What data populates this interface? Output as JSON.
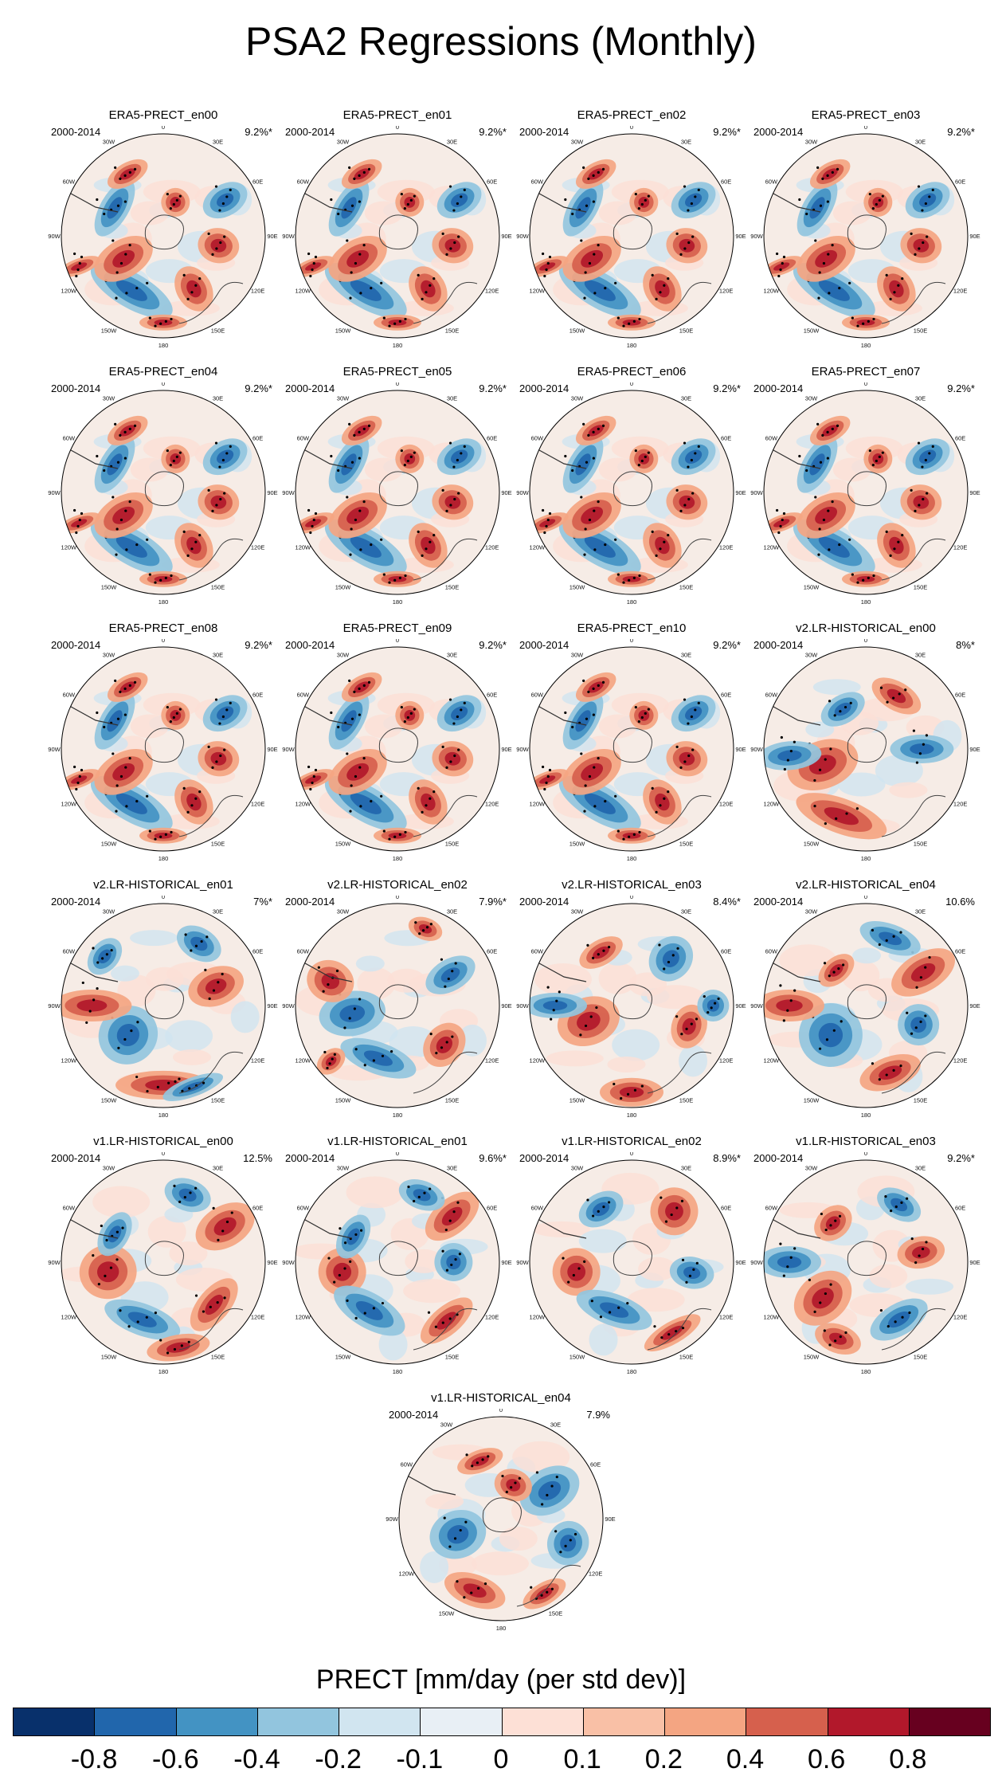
{
  "title": "PSA2 Regressions (Monthly)",
  "panels": [
    {
      "title": "ERA5-PRECT_en00",
      "years": "2000-2014",
      "pct": "9.2%*",
      "variant": 0
    },
    {
      "title": "ERA5-PRECT_en01",
      "years": "2000-2014",
      "pct": "9.2%*",
      "variant": 0
    },
    {
      "title": "ERA5-PRECT_en02",
      "years": "2000-2014",
      "pct": "9.2%*",
      "variant": 0
    },
    {
      "title": "ERA5-PRECT_en03",
      "years": "2000-2014",
      "pct": "9.2%*",
      "variant": 0
    },
    {
      "title": "ERA5-PRECT_en04",
      "years": "2000-2014",
      "pct": "9.2%*",
      "variant": 0
    },
    {
      "title": "ERA5-PRECT_en05",
      "years": "2000-2014",
      "pct": "9.2%*",
      "variant": 0
    },
    {
      "title": "ERA5-PRECT_en06",
      "years": "2000-2014",
      "pct": "9.2%*",
      "variant": 0
    },
    {
      "title": "ERA5-PRECT_en07",
      "years": "2000-2014",
      "pct": "9.2%*",
      "variant": 0
    },
    {
      "title": "ERA5-PRECT_en08",
      "years": "2000-2014",
      "pct": "9.2%*",
      "variant": 0
    },
    {
      "title": "ERA5-PRECT_en09",
      "years": "2000-2014",
      "pct": "9.2%*",
      "variant": 0
    },
    {
      "title": "ERA5-PRECT_en10",
      "years": "2000-2014",
      "pct": "9.2%*",
      "variant": 0
    },
    {
      "title": "v2.LR-HISTORICAL_en00",
      "years": "2000-2014",
      "pct": "8%*",
      "variant": 1
    },
    {
      "title": "v2.LR-HISTORICAL_en01",
      "years": "2000-2014",
      "pct": "7%*",
      "variant": 2
    },
    {
      "title": "v2.LR-HISTORICAL_en02",
      "years": "2000-2014",
      "pct": "7.9%*",
      "variant": 3
    },
    {
      "title": "v2.LR-HISTORICAL_en03",
      "years": "2000-2014",
      "pct": "8.4%*",
      "variant": 4
    },
    {
      "title": "v2.LR-HISTORICAL_en04",
      "years": "2000-2014",
      "pct": "10.6%",
      "variant": 5
    },
    {
      "title": "v1.LR-HISTORICAL_en00",
      "years": "2000-2014",
      "pct": "12.5%",
      "variant": 6
    },
    {
      "title": "v1.LR-HISTORICAL_en01",
      "years": "2000-2014",
      "pct": "9.6%*",
      "variant": 7
    },
    {
      "title": "v1.LR-HISTORICAL_en02",
      "years": "2000-2014",
      "pct": "8.9%*",
      "variant": 8
    },
    {
      "title": "v1.LR-HISTORICAL_en03",
      "years": "2000-2014",
      "pct": "9.2%*",
      "variant": 9
    },
    {
      "title": "v1.LR-HISTORICAL_en04",
      "years": "2000-2014",
      "pct": "7.9%",
      "variant": 10
    }
  ],
  "lon_labels": [
    "0",
    "30E",
    "60E",
    "90E",
    "120E",
    "150E",
    "180",
    "150W",
    "120W",
    "90W",
    "60W",
    "30W"
  ],
  "colorbar": {
    "title": "PRECT [mm/day (per std dev)]",
    "ticks": [
      "-0.8",
      "-0.6",
      "-0.4",
      "-0.2",
      "-0.1",
      "0",
      "0.1",
      "0.2",
      "0.4",
      "0.6",
      "0.8"
    ],
    "colors": [
      "#08306b",
      "#2166ac",
      "#4393c3",
      "#92c5de",
      "#d1e5f0",
      "#e8eff5",
      "#fde0d6",
      "#f9c0a6",
      "#f4a582",
      "#d6604d",
      "#b2182b",
      "#67001f"
    ]
  }
}
